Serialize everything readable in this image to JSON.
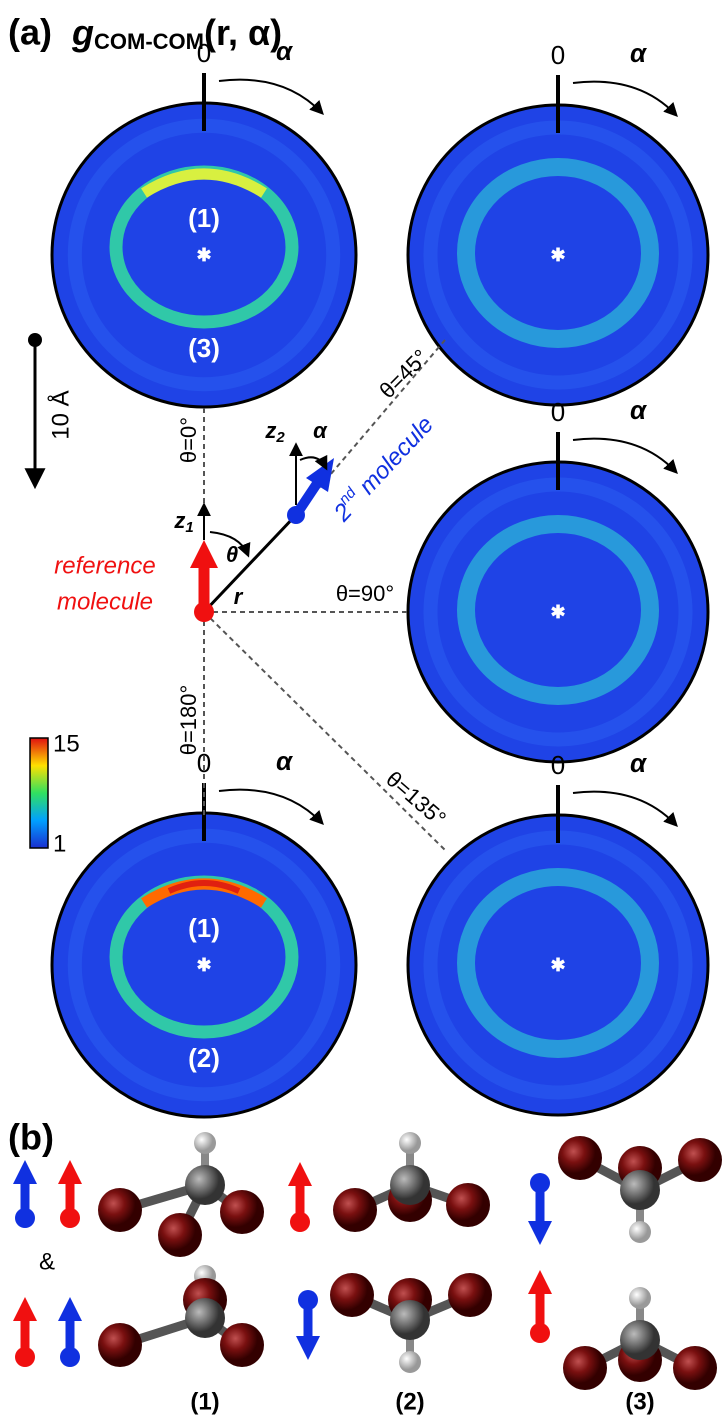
{
  "panel_a": {
    "label": "(a)",
    "title": {
      "symbol": "g",
      "subscript": "COM-COM",
      "args": "(r, α)"
    },
    "discs": [
      {
        "zero_label": "0",
        "rotation_label": "α",
        "markers": [
          "(1)",
          "(3)"
        ]
      },
      {
        "zero_label": "0",
        "rotation_label": "α",
        "markers": []
      },
      {
        "zero_label": "0",
        "rotation_label": "α",
        "markers": []
      },
      {
        "zero_label": "0",
        "rotation_label": "α",
        "markers": [
          "(1)",
          "(2)"
        ]
      },
      {
        "zero_label": "0",
        "rotation_label": "α",
        "markers": []
      }
    ],
    "angles": [
      "θ=0°",
      "θ=45°",
      "θ=90°",
      "θ=180°",
      "θ=135°"
    ],
    "scale_bar": "10 Å",
    "colorbar": {
      "max": 15,
      "min": 1
    },
    "schematic": {
      "z1": {
        "axis": "z",
        "index": "1"
      },
      "z2": {
        "axis": "z",
        "index": "2"
      },
      "alpha": "α",
      "theta": "θ",
      "r": "r",
      "reference": [
        "reference",
        "molecule"
      ],
      "second": {
        "ordinal": "2",
        "suffix": "nd",
        "word": "molecule"
      }
    }
  },
  "panel_b": {
    "label": "(b)",
    "and": "&",
    "configs": [
      "(1)",
      "(2)",
      "(3)"
    ]
  }
}
